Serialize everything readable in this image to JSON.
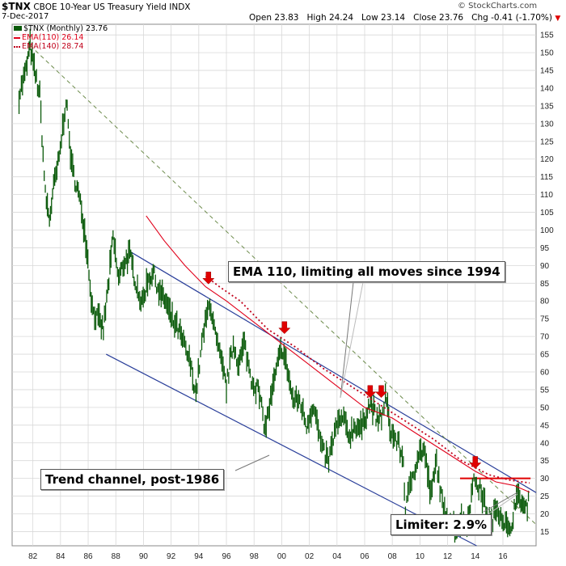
{
  "header": {
    "symbol": "$TNX",
    "description": "CBOE 10-Year US Treasury Yield INDX",
    "date": "7-Dec-2017",
    "open": "Open 23.83",
    "high": "High 24.24",
    "low": "Low 23.14",
    "close": "Close 23.76",
    "change": "Chg -0.41 (-1.70%)",
    "change_icon": "down-triangle-icon",
    "copyright": "© StockCharts.com"
  },
  "legend": {
    "price": "$TNX (Monthly) 23.76",
    "ema110": "EMA(110) 26.14",
    "ema140": "EMA(140) 28.74"
  },
  "annotations": {
    "ema_note": "EMA 110, limiting all moves since 1994",
    "channel_note": "Trend channel, post-1986",
    "limiter_note": "Limiter: 2.9%"
  },
  "colors": {
    "price": "#0a5a0a",
    "ema110": "#e0001a",
    "ema140": "#c0001a",
    "channel": "#2a3f9a",
    "dashed_trend": "#6b8a4a",
    "arrow": "#e00000",
    "limiter_line": "#e00000",
    "grid": "#d8d8d8"
  },
  "chart_data": {
    "type": "line",
    "title": "$TNX CBOE 10-Year US Treasury Yield INDX",
    "xlabel": "",
    "ylabel": "",
    "xlim": [
      1980.5,
      2018.4
    ],
    "ylim": [
      11,
      158
    ],
    "x_ticks": [
      "82",
      "84",
      "86",
      "88",
      "90",
      "92",
      "94",
      "96",
      "98",
      "00",
      "02",
      "04",
      "06",
      "08",
      "10",
      "12",
      "14",
      "16"
    ],
    "x_tick_years": [
      1982,
      1984,
      1986,
      1988,
      1990,
      1992,
      1994,
      1996,
      1998,
      2000,
      2002,
      2004,
      2006,
      2008,
      2010,
      2012,
      2014,
      2016
    ],
    "y_ticks": [
      15,
      20,
      25,
      30,
      35,
      40,
      45,
      50,
      55,
      60,
      65,
      70,
      75,
      80,
      85,
      90,
      95,
      100,
      105,
      110,
      115,
      120,
      125,
      130,
      135,
      140,
      145,
      150,
      155
    ],
    "series": [
      {
        "name": "$TNX (Monthly)",
        "style": "price-bars",
        "points": [
          [
            1981.0,
            138
          ],
          [
            1981.5,
            145
          ],
          [
            1981.8,
            152
          ],
          [
            1982.1,
            145
          ],
          [
            1982.5,
            138
          ],
          [
            1982.9,
            110
          ],
          [
            1983.2,
            103
          ],
          [
            1983.5,
            112
          ],
          [
            1983.9,
            120
          ],
          [
            1984.4,
            137
          ],
          [
            1984.8,
            118
          ],
          [
            1985.2,
            112
          ],
          [
            1985.6,
            104
          ],
          [
            1985.9,
            95
          ],
          [
            1986.3,
            78
          ],
          [
            1986.8,
            74
          ],
          [
            1987.1,
            72
          ],
          [
            1987.5,
            86
          ],
          [
            1987.8,
            98
          ],
          [
            1988.2,
            86
          ],
          [
            1988.6,
            91
          ],
          [
            1989.0,
            93
          ],
          [
            1989.4,
            86
          ],
          [
            1989.9,
            79
          ],
          [
            1990.3,
            86
          ],
          [
            1990.7,
            88
          ],
          [
            1991.2,
            82
          ],
          [
            1991.6,
            80
          ],
          [
            1992.0,
            75
          ],
          [
            1992.5,
            72
          ],
          [
            1992.9,
            68
          ],
          [
            1993.4,
            62
          ],
          [
            1993.8,
            54
          ],
          [
            1994.3,
            70
          ],
          [
            1994.8,
            80
          ],
          [
            1995.2,
            70
          ],
          [
            1995.6,
            63
          ],
          [
            1996.0,
            56
          ],
          [
            1996.5,
            68
          ],
          [
            1996.9,
            62
          ],
          [
            1997.3,
            68
          ],
          [
            1997.8,
            58
          ],
          [
            1998.3,
            55
          ],
          [
            1998.8,
            44
          ],
          [
            1999.2,
            52
          ],
          [
            1999.6,
            60
          ],
          [
            2000.0,
            67
          ],
          [
            2000.4,
            61
          ],
          [
            2000.8,
            52
          ],
          [
            2001.3,
            52
          ],
          [
            2001.8,
            45
          ],
          [
            2002.3,
            51
          ],
          [
            2002.9,
            38
          ],
          [
            2003.4,
            35
          ],
          [
            2003.9,
            44
          ],
          [
            2004.4,
            47
          ],
          [
            2004.9,
            42
          ],
          [
            2005.3,
            45
          ],
          [
            2005.8,
            44
          ],
          [
            2006.2,
            50
          ],
          [
            2006.5,
            51
          ],
          [
            2006.9,
            46
          ],
          [
            2007.3,
            48
          ],
          [
            2007.5,
            53
          ],
          [
            2007.9,
            43
          ],
          [
            2008.4,
            40
          ],
          [
            2008.8,
            35
          ],
          [
            2008.95,
            21
          ],
          [
            2009.4,
            30
          ],
          [
            2009.9,
            37
          ],
          [
            2010.3,
            38
          ],
          [
            2010.8,
            25
          ],
          [
            2011.2,
            35
          ],
          [
            2011.7,
            20
          ],
          [
            2012.2,
            19
          ],
          [
            2012.6,
            15
          ],
          [
            2013.0,
            19
          ],
          [
            2013.4,
            17
          ],
          [
            2013.8,
            27
          ],
          [
            2014.0,
            30
          ],
          [
            2014.6,
            24
          ],
          [
            2015.1,
            17
          ],
          [
            2015.6,
            22
          ],
          [
            2016.1,
            18
          ],
          [
            2016.5,
            14
          ],
          [
            2016.9,
            24
          ],
          [
            2017.3,
            24
          ],
          [
            2017.6,
            21
          ],
          [
            2017.93,
            23.8
          ]
        ]
      },
      {
        "name": "EMA(110)",
        "style": "solid",
        "points": [
          [
            1990.2,
            104
          ],
          [
            1991.5,
            97
          ],
          [
            1993.0,
            90
          ],
          [
            1994.5,
            84
          ],
          [
            1996.0,
            80
          ],
          [
            1998.0,
            74
          ],
          [
            2000.0,
            68
          ],
          [
            2002.0,
            62
          ],
          [
            2004.0,
            56
          ],
          [
            2006.0,
            50
          ],
          [
            2008.0,
            47
          ],
          [
            2010.0,
            42
          ],
          [
            2012.0,
            37
          ],
          [
            2014.0,
            32
          ],
          [
            2015.5,
            29
          ],
          [
            2016.8,
            28
          ],
          [
            2017.93,
            26.1
          ]
        ]
      },
      {
        "name": "EMA(140)",
        "style": "dotted",
        "points": [
          [
            1994.5,
            87
          ],
          [
            1995.5,
            84
          ],
          [
            1997.0,
            80
          ],
          [
            1999.0,
            72
          ],
          [
            2001.0,
            67
          ],
          [
            2003.0,
            61
          ],
          [
            2005.0,
            56
          ],
          [
            2007.0,
            51
          ],
          [
            2009.0,
            46
          ],
          [
            2011.0,
            41
          ],
          [
            2013.0,
            35
          ],
          [
            2015.0,
            31
          ],
          [
            2016.5,
            29.5
          ],
          [
            2017.93,
            28.7
          ]
        ]
      }
    ],
    "trendlines": [
      {
        "name": "channel-upper",
        "style": "solid",
        "from": [
          1989.0,
          94
        ],
        "to": [
          2018.4,
          26
        ]
      },
      {
        "name": "channel-lower",
        "style": "solid",
        "from": [
          1987.3,
          65
        ],
        "to": [
          2014.1,
          11
        ]
      },
      {
        "name": "dashed-downtrend",
        "style": "dashed",
        "from": [
          1981.8,
          152
        ],
        "to": [
          2018.4,
          17
        ]
      },
      {
        "name": "limiter",
        "style": "solid",
        "from": [
          2012.9,
          30
        ],
        "to": [
          2018.0,
          30
        ]
      }
    ],
    "marker_arrows": [
      [
        1994.7,
        85
      ],
      [
        2000.2,
        71
      ],
      [
        2006.4,
        53
      ],
      [
        2007.2,
        53
      ],
      [
        2014.0,
        33
      ]
    ]
  }
}
